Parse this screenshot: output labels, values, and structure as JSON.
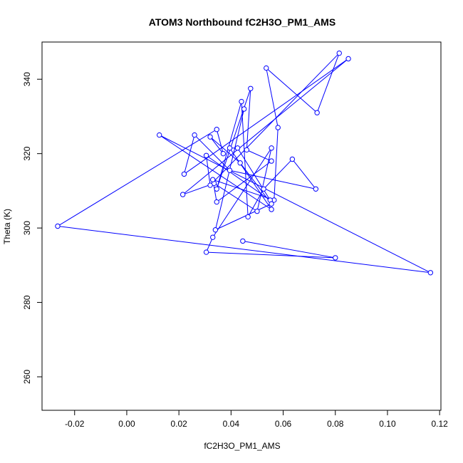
{
  "chart_data": {
    "type": "line",
    "title": "ATOM3 Northbound fC2H3O_PM1_AMS",
    "xlabel": "fC2H3O_PM1_AMS",
    "ylabel": "Theta (K)",
    "xlim": [
      -0.0325,
      0.1205
    ],
    "ylim": [
      251,
      350
    ],
    "xticks": [
      -0.02,
      0.0,
      0.02,
      0.04,
      0.06,
      0.08,
      0.1,
      0.12
    ],
    "xtick_labels": [
      "-0.02",
      "0.00",
      "0.02",
      "0.04",
      "0.06",
      "0.08",
      "0.10",
      "0.12"
    ],
    "yticks": [
      260,
      280,
      300,
      320,
      340
    ],
    "ytick_labels": [
      "260",
      "280",
      "300",
      "320",
      "340"
    ],
    "grid": false,
    "series": [
      {
        "color": "#0000ff",
        "x": [
          0.0445,
          0.08,
          0.0305,
          0.033,
          0.0555,
          0.05,
          0.0335,
          0.0215,
          0.085,
          0.022,
          0.026,
          0.0395,
          0.0725,
          0.0635,
          0.0525,
          0.0465,
          0.044,
          0.0345,
          0.0475,
          0.046,
          0.0555,
          0.0345,
          0.033,
          0.0565,
          0.058,
          0.0535,
          0.073,
          0.0815,
          0.032,
          0.0305,
          0.055,
          0.0425,
          0.0395,
          0.0555,
          0.0125,
          0.1165,
          -0.0265,
          0.0345,
          0.037,
          0.032,
          0.0435,
          0.0555,
          0.034,
          0.045
        ],
        "y": [
          296.5,
          292.0,
          293.5,
          297.5,
          321.5,
          304.5,
          312.0,
          309.0,
          345.5,
          314.5,
          325.0,
          315.5,
          310.5,
          318.5,
          310.5,
          303.0,
          334.0,
          310.5,
          337.5,
          321.0,
          318.0,
          307.0,
          313.0,
          307.5,
          327.0,
          343.0,
          331.0,
          347.0,
          311.5,
          319.5,
          307.5,
          321.5,
          321.5,
          305.0,
          325.0,
          288.0,
          300.5,
          326.5,
          320.0,
          324.5,
          317.5,
          306.5,
          299.5,
          332.0
        ]
      }
    ]
  }
}
